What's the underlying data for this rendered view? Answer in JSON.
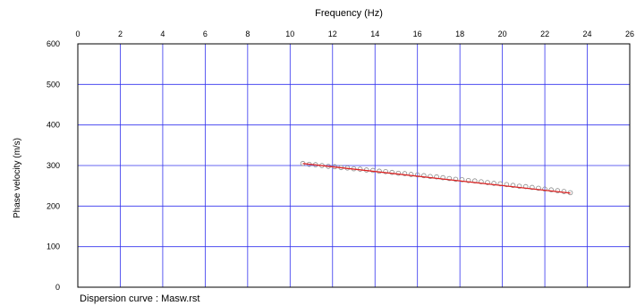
{
  "chart_data": {
    "type": "scatter",
    "xlabel": "Frequency (Hz)",
    "ylabel": "Phase velocity (m/s)",
    "caption": "Dispersion curve : Masw.rst",
    "xlim": [
      0,
      26
    ],
    "ylim": [
      0,
      600
    ],
    "x_ticks": [
      "0",
      "2",
      "4",
      "6",
      "8",
      "10",
      "12",
      "14",
      "16",
      "18",
      "20",
      "22",
      "24",
      "26"
    ],
    "y_ticks": [
      "0",
      "100",
      "200",
      "300",
      "400",
      "500",
      "600"
    ],
    "x_tick_values": [
      0,
      2,
      4,
      6,
      8,
      10,
      12,
      14,
      16,
      18,
      20,
      22,
      24,
      26
    ],
    "y_tick_values": [
      0,
      100,
      200,
      300,
      400,
      500,
      600
    ],
    "x_axis_position": "top",
    "grid": true,
    "colors": {
      "grid": "#3333ee",
      "frame": "#000000",
      "points": "#888888",
      "fit_line": "#dd2222"
    },
    "series": [
      {
        "kind": "points",
        "marker": "open-circle",
        "x": [
          10.6,
          10.9,
          11.2,
          11.5,
          11.8,
          12.1,
          12.4,
          12.7,
          13.0,
          13.3,
          13.6,
          13.9,
          14.2,
          14.5,
          14.8,
          15.1,
          15.4,
          15.7,
          16.0,
          16.3,
          16.6,
          16.9,
          17.2,
          17.5,
          17.8,
          18.1,
          18.4,
          18.7,
          19.0,
          19.3,
          19.6,
          19.9,
          20.2,
          20.5,
          20.8,
          21.1,
          21.4,
          21.7,
          22.0,
          22.3,
          22.6,
          22.9,
          23.2
        ],
        "y": [
          305,
          303,
          302,
          300,
          298,
          297,
          295,
          294,
          292,
          291,
          289,
          288,
          286,
          285,
          283,
          281,
          280,
          278,
          277,
          275,
          273,
          272,
          270,
          268,
          266,
          265,
          263,
          262,
          260,
          258,
          256,
          255,
          253,
          251,
          249,
          248,
          246,
          244,
          242,
          240,
          238,
          236,
          233
        ]
      },
      {
        "kind": "line",
        "x": [
          10.6,
          23.2
        ],
        "y": [
          305,
          232
        ]
      }
    ]
  }
}
